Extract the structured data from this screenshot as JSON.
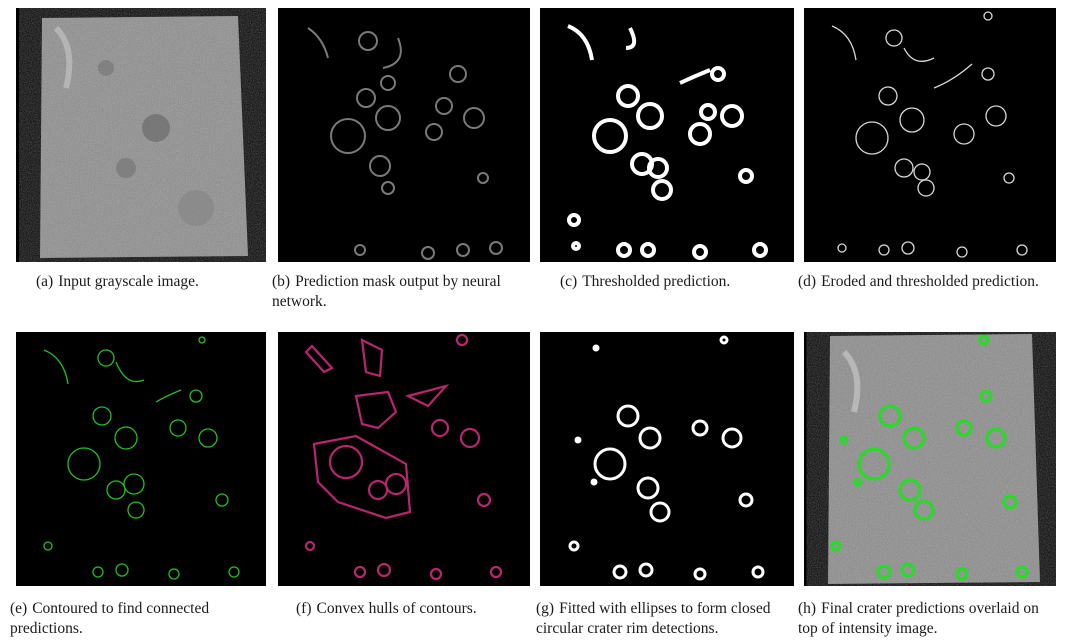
{
  "figure": {
    "panels": [
      {
        "id": "a",
        "caption": "(a)",
        "text": "Input grayscale image."
      },
      {
        "id": "b",
        "caption": "(b)",
        "text": "Prediction mask output by neural network."
      },
      {
        "id": "c",
        "caption": "(c)",
        "text": "Thresholded prediction."
      },
      {
        "id": "d",
        "caption": "(d)",
        "text": "Eroded and thresholded prediction."
      },
      {
        "id": "e",
        "caption": "(e)",
        "text": "Contoured to find connected predictions."
      },
      {
        "id": "f",
        "caption": "(f)",
        "text": "Convex hulls of contours."
      },
      {
        "id": "g",
        "caption": "(g)",
        "text": "Fitted with ellipses to form closed circular crater rim detections."
      },
      {
        "id": "h",
        "caption": "(h)",
        "text": "Final crater predictions overlaid on top of intensity image."
      }
    ],
    "colors": {
      "background": "#000000",
      "mask_gray": "#7a7a7a",
      "threshold_white": "#ffffff",
      "contour_green": "#22c01e",
      "hull_magenta": "#b8266e",
      "overlay_green": "#20e020",
      "lunar_gray": "#8a8a8a"
    }
  }
}
